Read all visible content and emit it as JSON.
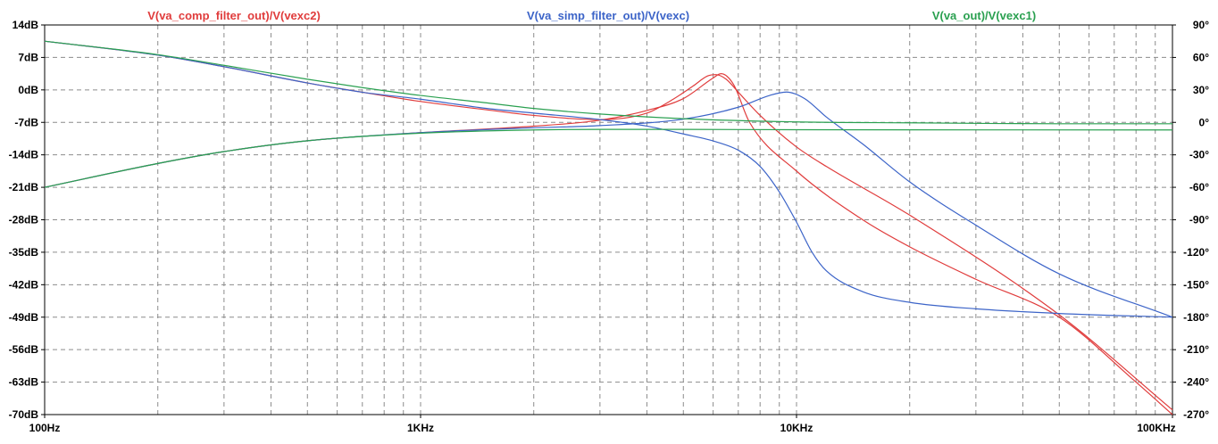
{
  "chart_data": {
    "type": "line",
    "title": "",
    "x_scale": "log",
    "xlim": [
      100,
      100000
    ],
    "x_ticks": [
      {
        "value": 100,
        "label": "100Hz"
      },
      {
        "value": 1000,
        "label": "1KHz"
      },
      {
        "value": 10000,
        "label": "10KHz"
      },
      {
        "value": 100000,
        "label": "100KHz"
      }
    ],
    "y_left": {
      "unit": "dB",
      "ylim": [
        -70,
        14
      ],
      "ticks": [
        {
          "value": 14,
          "label": "14dB"
        },
        {
          "value": 7,
          "label": "7dB"
        },
        {
          "value": 0,
          "label": "0dB"
        },
        {
          "value": -7,
          "label": "-7dB"
        },
        {
          "value": -14,
          "label": "-14dB"
        },
        {
          "value": -21,
          "label": "-21dB"
        },
        {
          "value": -28,
          "label": "-28dB"
        },
        {
          "value": -35,
          "label": "-35dB"
        },
        {
          "value": -42,
          "label": "-42dB"
        },
        {
          "value": -49,
          "label": "-49dB"
        },
        {
          "value": -56,
          "label": "-56dB"
        },
        {
          "value": -63,
          "label": "-63dB"
        },
        {
          "value": -70,
          "label": "-70dB"
        }
      ]
    },
    "y_right": {
      "unit": "deg",
      "ylim": [
        -270,
        90
      ],
      "ticks": [
        {
          "value": 90,
          "label": "90°"
        },
        {
          "value": 60,
          "label": "60°"
        },
        {
          "value": 30,
          "label": "30°"
        },
        {
          "value": 0,
          "label": "0°"
        },
        {
          "value": -30,
          "label": "-30°"
        },
        {
          "value": -60,
          "label": "-60°"
        },
        {
          "value": -90,
          "label": "-90°"
        },
        {
          "value": -120,
          "label": "-120°"
        },
        {
          "value": -150,
          "label": "-150°"
        },
        {
          "value": -180,
          "label": "-180°"
        },
        {
          "value": -210,
          "label": "-210°"
        },
        {
          "value": -240,
          "label": "-240°"
        },
        {
          "value": -270,
          "label": "-270°"
        }
      ]
    },
    "grid": true,
    "legend_position": "top",
    "series": [
      {
        "name": "V(va_comp_filter_out)/V(vexc2)",
        "color": "#e03c3c",
        "magnitude_db": [
          [
            100,
            10.5
          ],
          [
            200,
            7.5
          ],
          [
            300,
            5.0
          ],
          [
            500,
            1.5
          ],
          [
            700,
            -0.5
          ],
          [
            1000,
            -2.5
          ],
          [
            1500,
            -4.3
          ],
          [
            2000,
            -5.5
          ],
          [
            3000,
            -6.4
          ],
          [
            4000,
            -5.0
          ],
          [
            4700,
            -2.0
          ],
          [
            5300,
            0.8
          ],
          [
            5800,
            3.0
          ],
          [
            6100,
            3.3
          ],
          [
            6500,
            2.3
          ],
          [
            7000,
            -0.5
          ],
          [
            8000,
            -5.5
          ],
          [
            10000,
            -12.3
          ],
          [
            12000,
            -16.5
          ],
          [
            20000,
            -27.0
          ],
          [
            50000,
            -48.5
          ],
          [
            100000,
            -69.0
          ]
        ],
        "phase_deg": [
          [
            100,
            -60.0
          ],
          [
            200,
            -38.0
          ],
          [
            300,
            -27.0
          ],
          [
            500,
            -17.0
          ],
          [
            1000,
            -9.5
          ],
          [
            2000,
            -3.5
          ],
          [
            3000,
            2.0
          ],
          [
            4000,
            11.0
          ],
          [
            5000,
            22.0
          ],
          [
            6000,
            41.0
          ],
          [
            6300,
            45.0
          ],
          [
            6800,
            35.0
          ],
          [
            7500,
            0.0
          ],
          [
            10000,
            -45.0
          ],
          [
            15000,
            -90.0
          ],
          [
            20000,
            -115.0
          ],
          [
            30000,
            -145.0
          ],
          [
            50000,
            -180.0
          ],
          [
            80000,
            -240.0
          ],
          [
            100000,
            -270.0
          ]
        ]
      },
      {
        "name": "V(va_simp_filter_out)/V(vexc)",
        "color": "#3c64c8",
        "magnitude_db": [
          [
            100,
            10.5
          ],
          [
            200,
            7.5
          ],
          [
            300,
            5.0
          ],
          [
            500,
            1.5
          ],
          [
            700,
            -0.5
          ],
          [
            1000,
            -2.0
          ],
          [
            1500,
            -4.0
          ],
          [
            2000,
            -5.0
          ],
          [
            3000,
            -6.4
          ],
          [
            4000,
            -7.8
          ],
          [
            5000,
            -9.5
          ],
          [
            6000,
            -11.0
          ],
          [
            7000,
            -13.0
          ],
          [
            8000,
            -16.5
          ],
          [
            9000,
            -22.0
          ],
          [
            10000,
            -28.5
          ],
          [
            11000,
            -35.0
          ],
          [
            12000,
            -39.0
          ],
          [
            15000,
            -43.5
          ],
          [
            20000,
            -45.8
          ],
          [
            30000,
            -47.2
          ],
          [
            50000,
            -48.2
          ],
          [
            100000,
            -49.0
          ]
        ],
        "phase_deg": [
          [
            100,
            -60.0
          ],
          [
            200,
            -38.0
          ],
          [
            300,
            -27.0
          ],
          [
            500,
            -17.0
          ],
          [
            1000,
            -9.5
          ],
          [
            2000,
            -5.0
          ],
          [
            3000,
            -3.0
          ],
          [
            5000,
            3.0
          ],
          [
            7000,
            14.0
          ],
          [
            8500,
            25.0
          ],
          [
            9400,
            28.0
          ],
          [
            10500,
            22.0
          ],
          [
            12000,
            5.0
          ],
          [
            15000,
            -20.0
          ],
          [
            20000,
            -55.0
          ],
          [
            30000,
            -95.0
          ],
          [
            50000,
            -140.0
          ],
          [
            100000,
            -180.0
          ]
        ]
      },
      {
        "name": "V(va_out)/V(vexc1)",
        "color": "#2aa050",
        "magnitude_db": [
          [
            100,
            10.5
          ],
          [
            200,
            7.6
          ],
          [
            300,
            5.3
          ],
          [
            500,
            2.3
          ],
          [
            700,
            0.5
          ],
          [
            1000,
            -1.2
          ],
          [
            1500,
            -2.8
          ],
          [
            2000,
            -4.0
          ],
          [
            3000,
            -5.2
          ],
          [
            5000,
            -6.2
          ],
          [
            10000,
            -6.9
          ],
          [
            20000,
            -7.1
          ],
          [
            50000,
            -7.3
          ],
          [
            100000,
            -7.3
          ]
        ],
        "phase_deg": [
          [
            100,
            -60.0
          ],
          [
            200,
            -38.0
          ],
          [
            300,
            -27.0
          ],
          [
            500,
            -17.0
          ],
          [
            1000,
            -10.0
          ],
          [
            2000,
            -7.0
          ],
          [
            3000,
            -6.5
          ],
          [
            5000,
            -6.5
          ],
          [
            10000,
            -6.8
          ],
          [
            100000,
            -7.0
          ]
        ]
      }
    ]
  }
}
